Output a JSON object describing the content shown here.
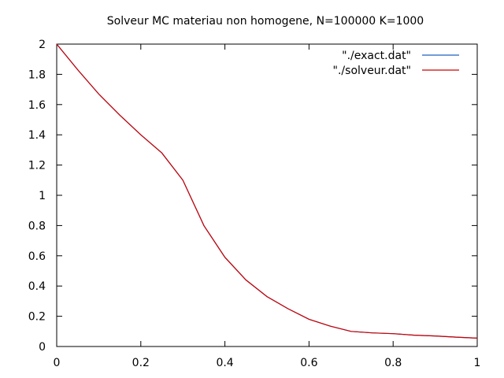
{
  "chart_data": {
    "type": "line",
    "title": "Solveur MC materiau non homogene, N=100000 K=1000",
    "xlabel": "",
    "ylabel": "",
    "xlim": [
      0,
      1
    ],
    "ylim": [
      0,
      2
    ],
    "xticks": [
      {
        "value": 0,
        "label": "0"
      },
      {
        "value": 0.2,
        "label": "0.2"
      },
      {
        "value": 0.4,
        "label": "0.4"
      },
      {
        "value": 0.6,
        "label": "0.6"
      },
      {
        "value": 0.8,
        "label": "0.8"
      },
      {
        "value": 1,
        "label": "1"
      }
    ],
    "yticks": [
      {
        "value": 0,
        "label": "0"
      },
      {
        "value": 0.2,
        "label": "0.2"
      },
      {
        "value": 0.4,
        "label": "0.4"
      },
      {
        "value": 0.6,
        "label": "0.6"
      },
      {
        "value": 0.8,
        "label": "0.8"
      },
      {
        "value": 1,
        "label": "1"
      },
      {
        "value": 1.2,
        "label": "1.2"
      },
      {
        "value": 1.4,
        "label": "1.4"
      },
      {
        "value": 1.6,
        "label": "1.6"
      },
      {
        "value": 1.8,
        "label": "1.8"
      },
      {
        "value": 2,
        "label": "2"
      }
    ],
    "grid": false,
    "legend_position": "top-right",
    "series": [
      {
        "name": "\"./exact.dat\"",
        "color": "#1f5fbf",
        "x": [
          0,
          0.05,
          0.1,
          0.15,
          0.2,
          0.25,
          0.3,
          0.35,
          0.4,
          0.45,
          0.5,
          0.55,
          0.6,
          0.65,
          0.7,
          0.75,
          0.8,
          0.85,
          0.9,
          0.95,
          1
        ],
        "y": [
          2.0,
          1.83,
          1.67,
          1.53,
          1.4,
          1.28,
          1.1,
          0.8,
          0.59,
          0.44,
          0.33,
          0.25,
          0.18,
          0.135,
          0.1,
          0.09,
          0.085,
          0.075,
          0.07,
          0.062,
          0.055
        ]
      },
      {
        "name": "\"./solveur.dat\"",
        "color": "#cc0000",
        "x": [
          0,
          0.05,
          0.1,
          0.15,
          0.2,
          0.25,
          0.3,
          0.35,
          0.4,
          0.45,
          0.5,
          0.55,
          0.6,
          0.65,
          0.7,
          0.75,
          0.8,
          0.85,
          0.9,
          0.95,
          1
        ],
        "y": [
          2.0,
          1.83,
          1.67,
          1.53,
          1.4,
          1.28,
          1.1,
          0.8,
          0.59,
          0.44,
          0.33,
          0.25,
          0.18,
          0.135,
          0.1,
          0.09,
          0.085,
          0.075,
          0.07,
          0.062,
          0.055
        ]
      }
    ]
  }
}
